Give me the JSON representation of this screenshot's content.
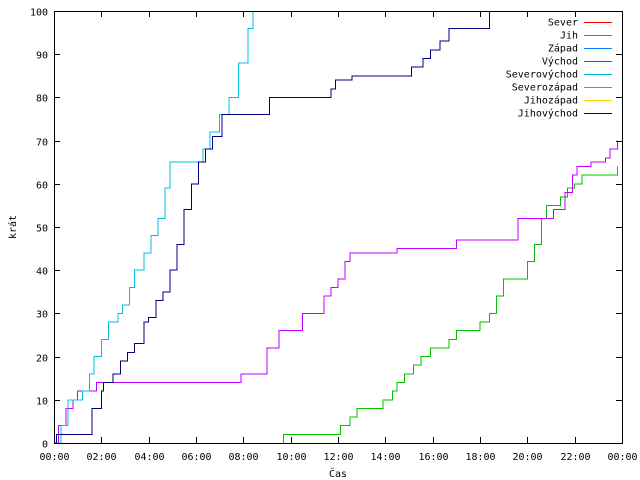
{
  "chart_data": {
    "type": "line",
    "title": "",
    "xlabel": "Čas",
    "ylabel": "krát",
    "xlim": [
      0,
      24
    ],
    "ylim": [
      0,
      100
    ],
    "grid": false,
    "legend_position": "top-right",
    "x_unit": "hours",
    "x_ticks": [
      {
        "value": 0,
        "label": "00:00"
      },
      {
        "value": 2,
        "label": "02:00"
      },
      {
        "value": 4,
        "label": "04:00"
      },
      {
        "value": 6,
        "label": "06:00"
      },
      {
        "value": 8,
        "label": "08:00"
      },
      {
        "value": 10,
        "label": "10:00"
      },
      {
        "value": 12,
        "label": "12:00"
      },
      {
        "value": 14,
        "label": "14:00"
      },
      {
        "value": 16,
        "label": "16:00"
      },
      {
        "value": 18,
        "label": "18:00"
      },
      {
        "value": 20,
        "label": "20:00"
      },
      {
        "value": 22,
        "label": "22:00"
      },
      {
        "value": 24,
        "label": "00:00"
      }
    ],
    "y_ticks": [
      0,
      10,
      20,
      30,
      40,
      50,
      60,
      70,
      80,
      90,
      100
    ],
    "series": [
      {
        "name": "Sever",
        "color": "#ff0000",
        "points": []
      },
      {
        "name": "Jih",
        "color": "#00c000",
        "points": [
          [
            9.7,
            0
          ],
          [
            9.7,
            2
          ],
          [
            11.9,
            2
          ],
          [
            12.1,
            4
          ],
          [
            12.5,
            6
          ],
          [
            12.8,
            8
          ],
          [
            13.7,
            8
          ],
          [
            13.9,
            10
          ],
          [
            14.3,
            12
          ],
          [
            14.5,
            14
          ],
          [
            14.8,
            16
          ],
          [
            15.2,
            18
          ],
          [
            15.5,
            20
          ],
          [
            15.9,
            22
          ],
          [
            16.6,
            22
          ],
          [
            16.7,
            24
          ],
          [
            17.0,
            26
          ],
          [
            17.8,
            26
          ],
          [
            18.0,
            28
          ],
          [
            18.4,
            30
          ],
          [
            18.7,
            34
          ],
          [
            19.0,
            38
          ],
          [
            19.9,
            38
          ],
          [
            20.0,
            42
          ],
          [
            20.3,
            46
          ],
          [
            20.6,
            52
          ],
          [
            20.8,
            55
          ],
          [
            21.2,
            55
          ],
          [
            21.4,
            57
          ],
          [
            21.7,
            59
          ],
          [
            22.0,
            60
          ],
          [
            22.3,
            62
          ],
          [
            23.6,
            62
          ],
          [
            23.8,
            64
          ]
        ]
      },
      {
        "name": "Západ",
        "color": "#0080ff",
        "points": []
      },
      {
        "name": "Východ",
        "color": "#c000ff",
        "points": [
          [
            0.0,
            0
          ],
          [
            0.2,
            4
          ],
          [
            0.5,
            8
          ],
          [
            0.8,
            10
          ],
          [
            1.0,
            12
          ],
          [
            1.6,
            12
          ],
          [
            1.8,
            14
          ],
          [
            7.8,
            14
          ],
          [
            7.9,
            16
          ],
          [
            8.8,
            16
          ],
          [
            9.0,
            22
          ],
          [
            9.3,
            22
          ],
          [
            9.5,
            26
          ],
          [
            10.3,
            26
          ],
          [
            10.5,
            30
          ],
          [
            11.2,
            30
          ],
          [
            11.4,
            34
          ],
          [
            11.7,
            36
          ],
          [
            12.0,
            38
          ],
          [
            12.3,
            42
          ],
          [
            12.5,
            44
          ],
          [
            14.4,
            44
          ],
          [
            14.5,
            45
          ],
          [
            16.8,
            45
          ],
          [
            17.0,
            47
          ],
          [
            19.4,
            47
          ],
          [
            19.6,
            52
          ],
          [
            20.8,
            52
          ],
          [
            21.1,
            54
          ],
          [
            21.6,
            58
          ],
          [
            21.9,
            62
          ],
          [
            22.1,
            64
          ],
          [
            22.7,
            65
          ],
          [
            23.3,
            66
          ],
          [
            23.5,
            68
          ],
          [
            23.8,
            70
          ]
        ]
      },
      {
        "name": "Severovýchod",
        "color": "#00c0e0",
        "points": [
          [
            0.0,
            0
          ],
          [
            0.3,
            4
          ],
          [
            0.6,
            10
          ],
          [
            1.2,
            12
          ],
          [
            1.5,
            16
          ],
          [
            1.7,
            20
          ],
          [
            2.0,
            24
          ],
          [
            2.3,
            28
          ],
          [
            2.7,
            30
          ],
          [
            2.9,
            32
          ],
          [
            3.2,
            36
          ],
          [
            3.4,
            40
          ],
          [
            3.8,
            44
          ],
          [
            4.1,
            48
          ],
          [
            4.4,
            52
          ],
          [
            4.7,
            59
          ],
          [
            4.9,
            65
          ],
          [
            6.0,
            65
          ],
          [
            6.3,
            68
          ],
          [
            6.6,
            72
          ],
          [
            7.0,
            76
          ],
          [
            7.4,
            80
          ],
          [
            7.8,
            88
          ],
          [
            8.2,
            96
          ],
          [
            8.4,
            100
          ]
        ]
      },
      {
        "name": "Severozápad",
        "color": "#c08000",
        "points": []
      },
      {
        "name": "Jihozápad",
        "color": "#ffd000",
        "points": []
      },
      {
        "name": "Jihovýchod",
        "color": "#000080",
        "points": [
          [
            0.0,
            0
          ],
          [
            0.1,
            2
          ],
          [
            1.5,
            2
          ],
          [
            1.6,
            8
          ],
          [
            2.0,
            12
          ],
          [
            2.1,
            14
          ],
          [
            2.3,
            14
          ],
          [
            2.5,
            16
          ],
          [
            2.8,
            19
          ],
          [
            3.1,
            21
          ],
          [
            3.4,
            23
          ],
          [
            3.8,
            28
          ],
          [
            4.0,
            29
          ],
          [
            4.3,
            33
          ],
          [
            4.6,
            35
          ],
          [
            4.9,
            40
          ],
          [
            5.2,
            46
          ],
          [
            5.5,
            54
          ],
          [
            5.8,
            60
          ],
          [
            6.1,
            65
          ],
          [
            6.4,
            68
          ],
          [
            6.7,
            71
          ],
          [
            7.1,
            76
          ],
          [
            8.9,
            76
          ],
          [
            9.1,
            80
          ],
          [
            11.6,
            80
          ],
          [
            11.7,
            82
          ],
          [
            11.9,
            84
          ],
          [
            12.6,
            85
          ],
          [
            14.9,
            85
          ],
          [
            15.1,
            87
          ],
          [
            15.6,
            89
          ],
          [
            15.9,
            91
          ],
          [
            16.3,
            93
          ],
          [
            16.7,
            96
          ],
          [
            18.2,
            96
          ],
          [
            18.4,
            100
          ]
        ]
      }
    ]
  }
}
